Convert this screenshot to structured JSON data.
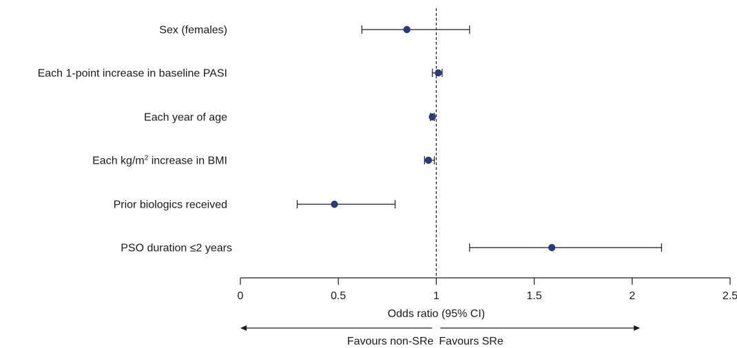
{
  "chart_data": {
    "type": "forest",
    "xlabel": "Odds ratio (95% CI)",
    "xlim": [
      0,
      2.5
    ],
    "xticks": [
      0,
      0.5,
      1,
      1.5,
      2,
      2.5
    ],
    "x_tick_labels": [
      "0",
      "0.5",
      "1",
      "1.5",
      "2",
      "2.5"
    ],
    "reference_line": 1,
    "reference_line_style": "dashed",
    "point_color": "#2b3a7a",
    "rows": [
      {
        "label": "Sex (females)",
        "or": 0.85,
        "ci_low": 0.62,
        "ci_high": 1.17
      },
      {
        "label_pre": "Each 1-point increase in baseline PASI",
        "or": 1.01,
        "ci_low": 0.98,
        "ci_high": 1.03
      },
      {
        "label": "Each year of age",
        "or": 0.98,
        "ci_low": 0.97,
        "ci_high": 0.99
      },
      {
        "label_pre": "Each kg/m",
        "label_sup": "2",
        "label_post": " increase in BMI",
        "or": 0.96,
        "ci_low": 0.94,
        "ci_high": 0.99
      },
      {
        "label": "Prior biologics received",
        "or": 0.48,
        "ci_low": 0.29,
        "ci_high": 0.79
      },
      {
        "label": "PSO duration ≤2 years",
        "or": 1.59,
        "ci_low": 1.17,
        "ci_high": 2.15
      }
    ],
    "favours": {
      "left": "Favours non-SRe",
      "right": "Favours SRe"
    }
  }
}
